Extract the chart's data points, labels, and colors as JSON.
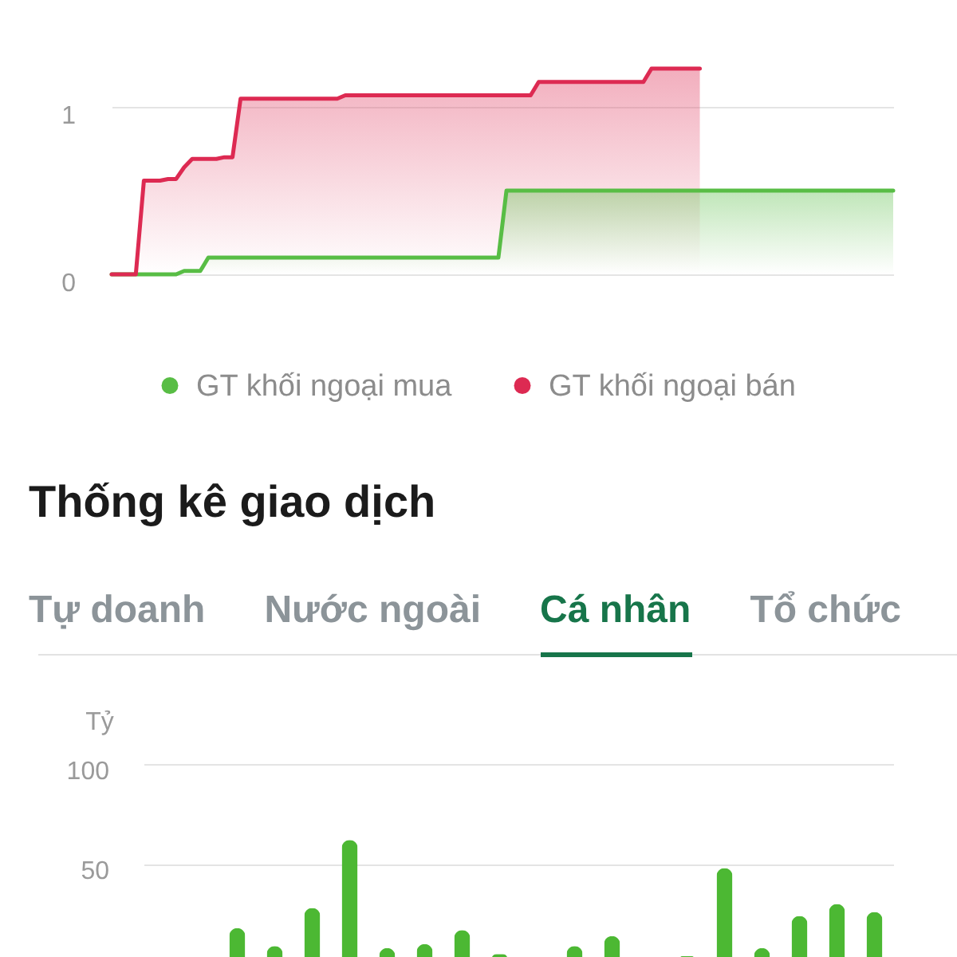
{
  "chart_data": [
    {
      "type": "area",
      "categories": [
        null,
        null,
        null,
        null,
        null,
        null,
        null,
        null,
        null,
        null,
        null,
        null,
        null,
        null,
        null,
        null,
        null,
        null,
        null,
        null,
        null,
        null,
        null,
        null,
        null,
        null,
        null,
        null,
        null,
        null,
        null,
        null,
        null,
        null,
        null,
        null,
        null,
        null,
        null,
        null,
        null,
        null,
        null,
        null,
        null,
        null,
        null,
        null,
        null,
        null,
        null,
        null,
        null,
        null,
        null,
        null,
        null,
        null,
        null,
        null,
        null,
        null,
        null,
        null,
        null,
        null,
        null,
        null,
        null,
        null,
        null,
        null,
        null,
        null,
        null,
        null,
        null,
        null,
        null,
        null,
        null,
        null,
        null,
        null,
        null,
        null,
        null,
        null,
        null,
        null,
        null,
        null,
        null,
        null,
        null,
        null,
        null,
        null
      ],
      "series": [
        {
          "name": "GT khối ngoại mua",
          "color": "#58bd45",
          "values": [
            0,
            0,
            0,
            0,
            0,
            0,
            0,
            0,
            0,
            0.02,
            0.02,
            0.02,
            0.1,
            0.1,
            0.1,
            0.1,
            0.1,
            0.1,
            0.1,
            0.1,
            0.1,
            0.1,
            0.1,
            0.1,
            0.1,
            0.1,
            0.1,
            0.1,
            0.1,
            0.1,
            0.1,
            0.1,
            0.1,
            0.1,
            0.1,
            0.1,
            0.1,
            0.1,
            0.1,
            0.1,
            0.1,
            0.1,
            0.1,
            0.1,
            0.1,
            0.1,
            0.1,
            0.1,
            0.1,
            0.5,
            0.5,
            0.5,
            0.5,
            0.5,
            0.5,
            0.5,
            0.5,
            0.5,
            0.5,
            0.5,
            0.5,
            0.5,
            0.5,
            0.5,
            0.5,
            0.5,
            0.5,
            0.5,
            0.5,
            0.5,
            0.5,
            0.5,
            0.5,
            0.5,
            0.5,
            0.5,
            0.5,
            0.5,
            0.5,
            0.5,
            0.5,
            0.5,
            0.5,
            0.5,
            0.5,
            0.5,
            0.5,
            0.5,
            0.5,
            0.5,
            0.5,
            0.5,
            0.5,
            0.5,
            0.5,
            0.5,
            0.5,
            0.5
          ]
        },
        {
          "name": "GT khối ngoại bán",
          "color": "#dd2a52",
          "values": [
            0,
            0,
            0,
            0,
            0.56,
            0.56,
            0.56,
            0.57,
            0.57,
            0.64,
            0.69,
            0.69,
            0.69,
            0.69,
            0.7,
            0.7,
            1.05,
            1.05,
            1.05,
            1.05,
            1.05,
            1.05,
            1.05,
            1.05,
            1.05,
            1.05,
            1.05,
            1.05,
            1.05,
            1.07,
            1.07,
            1.07,
            1.07,
            1.07,
            1.07,
            1.07,
            1.07,
            1.07,
            1.07,
            1.07,
            1.07,
            1.07,
            1.07,
            1.07,
            1.07,
            1.07,
            1.07,
            1.07,
            1.07,
            1.07,
            1.07,
            1.07,
            1.07,
            1.15,
            1.15,
            1.15,
            1.15,
            1.15,
            1.15,
            1.15,
            1.15,
            1.15,
            1.15,
            1.15,
            1.15,
            1.15,
            1.15,
            1.23,
            1.23,
            1.23,
            1.23,
            1.23,
            1.23,
            1.23,
            null,
            null,
            null,
            null,
            null,
            null,
            null,
            null,
            null,
            null,
            null,
            null,
            null,
            null,
            null,
            null,
            null,
            null,
            null,
            null,
            null,
            null,
            null,
            null
          ]
        }
      ],
      "ylim": [
        0,
        1.64
      ],
      "yticks": [
        0,
        1
      ],
      "grid": "y",
      "legend": "bottom",
      "tick_labels": "y"
    },
    {
      "type": "other",
      "title": "Thống kê giao dịch",
      "annotations": [
        "Tự doanh",
        "Nước ngoài",
        "Cá nhân",
        "Tổ chức"
      ]
    },
    {
      "type": "bar",
      "categories": [
        null,
        null,
        null,
        null,
        null,
        null,
        null,
        null,
        null,
        null,
        null,
        null,
        null,
        null,
        null,
        null,
        null,
        null,
        null,
        null
      ],
      "values": [
        null,
        null,
        18,
        9,
        28,
        62,
        8,
        10,
        17,
        5,
        null,
        9,
        14,
        null,
        4,
        48,
        8,
        24,
        30,
        26
      ],
      "color": "#4cb833",
      "ylabel": "Tỷ",
      "ylim": [
        3.5,
        100
      ],
      "yticks": [
        50,
        100
      ],
      "grid": "y",
      "tick_labels": "y"
    }
  ]
}
